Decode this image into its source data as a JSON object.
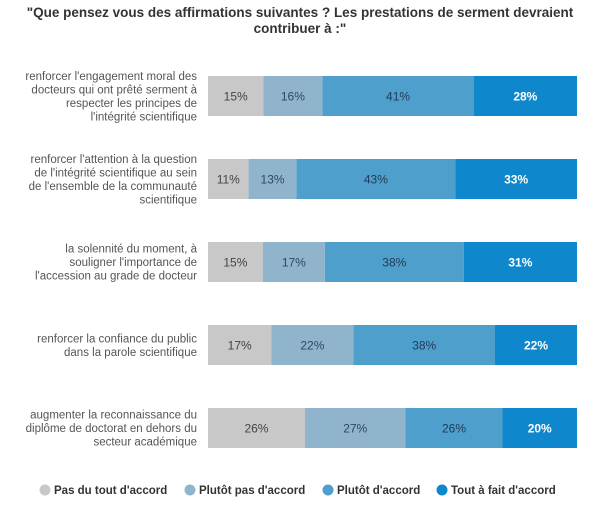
{
  "chart_data": {
    "type": "bar",
    "orientation": "horizontal",
    "stacked": "percent",
    "title": "\"Que pensez vous des affirmations suivantes ? Les prestations de serment devraient contribuer à :\"",
    "title_lines": [
      "\"Que pensez vous des affirmations suivantes ? Les prestations de serment devraient",
      "contribuer à :\""
    ],
    "xlabel": "",
    "ylabel": "",
    "xlim": [
      0,
      100
    ],
    "grid": false,
    "legend_position": "bottom",
    "categories": [
      "renforcer l'engagement moral des docteurs qui ont prêté serment à respecter les principes de l'intégrité scientifique",
      "renforcer l'attention à la question de l'intégrité scientifique au sein de l'ensemble de la communauté scientifique",
      "la solennité du moment, à souligner l'importance de l'accession au grade de docteur",
      "renforcer la confiance du public dans la parole scientifique",
      "augmenter la reconnaissance du diplôme de doctorat en dehors du secteur académique"
    ],
    "category_lines": [
      [
        "renforcer l'engagement moral des",
        "docteurs qui ont prêté serment à",
        "respecter les principes de",
        "l'intégrité scientifique"
      ],
      [
        "renforcer l'attention à la question",
        "de l'intégrité scientifique au sein",
        "de l'ensemble de la communauté",
        "scientifique"
      ],
      [
        "la solennité du moment, à",
        "souligner l'importance de",
        "l'accession au grade de docteur"
      ],
      [
        "renforcer la confiance du public",
        "dans la parole scientifique"
      ],
      [
        "augmenter la reconnaissance du",
        "diplôme de doctorat en dehors du",
        "secteur académique"
      ]
    ],
    "series": [
      {
        "name": "Pas du tout d'accord",
        "color": "#c8c8c8",
        "label_color": "#444444",
        "values": [
          15,
          11,
          15,
          17,
          26
        ]
      },
      {
        "name": "Plutôt pas d'accord",
        "color": "#8fb4cb",
        "label_color": "#2f4a5f",
        "values": [
          16,
          13,
          17,
          22,
          27
        ]
      },
      {
        "name": "Plutôt d'accord",
        "color": "#4f9fcc",
        "label_color": "#1f3a55",
        "values": [
          41,
          43,
          38,
          38,
          26
        ]
      },
      {
        "name": "Tout à fait d'accord",
        "color": "#0f87cc",
        "label_color": "#ffffff",
        "values": [
          28,
          33,
          31,
          22,
          20
        ]
      }
    ],
    "value_suffix": "%"
  }
}
